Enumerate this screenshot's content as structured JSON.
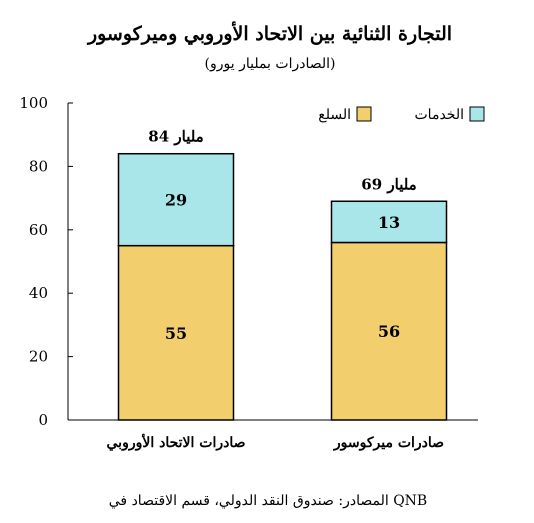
{
  "chart_data": {
    "type": "bar",
    "stacked": true,
    "title": "التجارة الثنائية بين الاتحاد الأوروبي وميركوسور",
    "subtitle": "(الصادرات بمليار يورو)",
    "categories": [
      "صادرات الاتحاد الأوروبي",
      "صادرات ميركوسور"
    ],
    "series": [
      {
        "name": "السلع",
        "values": [
          55,
          56
        ],
        "color": "#F2CF6C"
      },
      {
        "name": "الخدمات",
        "values": [
          29,
          13
        ],
        "color": "#A8E6EA"
      }
    ],
    "totals": [
      "84 مليار",
      "69 مليار"
    ],
    "ylim": [
      0,
      100
    ],
    "yticks": [
      0,
      20,
      40,
      60,
      80,
      100
    ],
    "xlabel": "",
    "ylabel": "",
    "grid": false,
    "legend_position": "top-right",
    "source": "المصادر: صندوق النقد الدولي، قسم الاقتصاد في QNB"
  }
}
